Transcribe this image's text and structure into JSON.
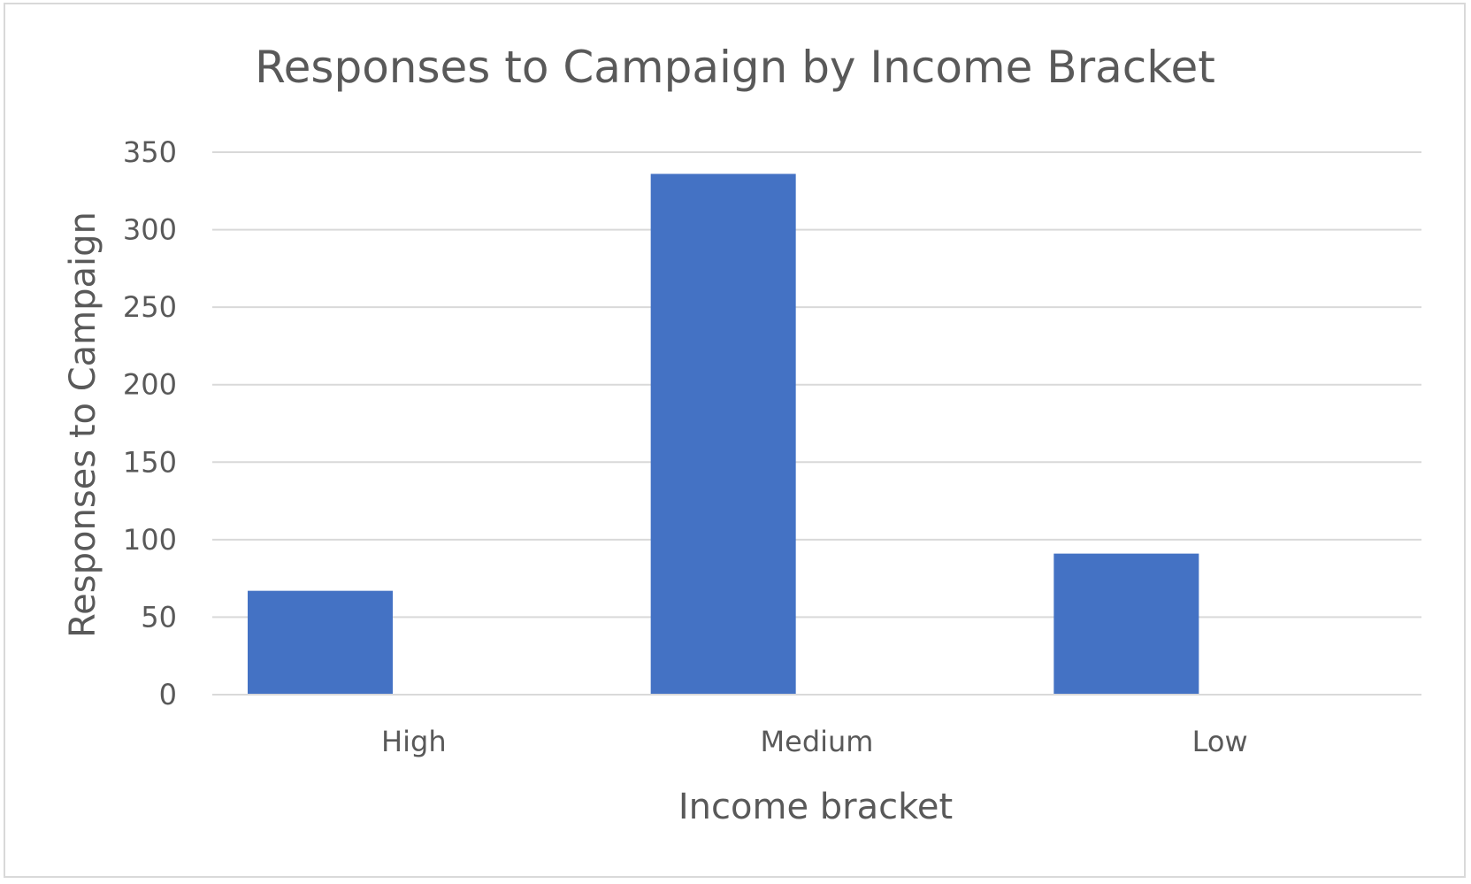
{
  "chart_data": {
    "type": "bar",
    "title": "Responses to Campaign by Income Bracket",
    "xlabel": "Income bracket",
    "ylabel": "Responses to Campaign",
    "categories": [
      "High",
      "Medium",
      "Low"
    ],
    "values": [
      67,
      336,
      91
    ],
    "ylim": [
      0,
      350
    ],
    "yticks": [
      "0",
      "50",
      "100",
      "150",
      "200",
      "250",
      "300",
      "350"
    ],
    "grid": true,
    "legend": "none",
    "bar_color": "#4472C4",
    "text_color": "#595959",
    "grid_color": "#d9d9d9"
  }
}
